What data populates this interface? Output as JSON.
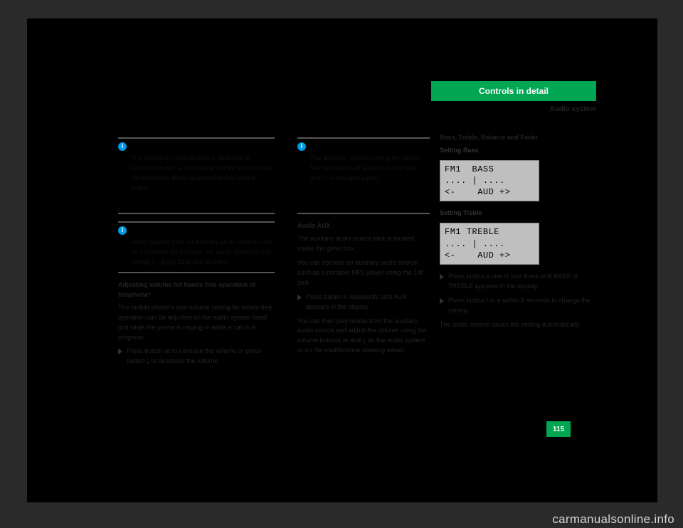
{
  "header": {
    "tab": "Controls in detail",
    "sub": "Audio system"
  },
  "col1": {
    "info1_body": "The telephone mute feature is available in conjunction with a compatible mobile phone using the Mercedes-Benz approved mobile phone cradle.",
    "info2_body": "When playing from an auxiliary audio source such as a portable MP3 player, the audio system's GAL setting (→ page 123) has no effect.",
    "heading": "Adjusting volume for hands-free operation of telephone*",
    "p1": "The mobile phone's own volume setting for hands-free operation can be adjusted on the audio system head unit while the phone is ringing or while a call is in progress.",
    "step1": "Press button æ to increase the volume or press button ç to decrease the volume."
  },
  "col2": {
    "info1_body": "The adjusted volume setting for hands-free operation will apply to future calls until it is changed again.",
    "heading": "Audio AUX",
    "p1": "The auxiliary audio source jack is located inside the glove box.",
    "p2": "You can connect an auxiliary audio source such as a portable MP3 player using the 1/8\" jack.",
    "step1": "Press button k repeatedly until AUX appears in the display.",
    "p3": "You can then play media from the auxiliary audio source and adjust the volume using the volume buttons æ and ç on the audio system or on the multifunction steering wheel."
  },
  "col3": {
    "heading": "Bass, Treble, Balance and Fader",
    "sub_bass": "Setting Bass",
    "lcd_bass_l1": "FM1  BASS",
    "lcd_bass_l2": ".... | ....",
    "lcd_bass_l3": "<-    AUD +>",
    "sub_treble": "Setting Treble",
    "lcd_treble_l1": "FM1 TREBLE",
    "lcd_treble_l2": ".... | ....",
    "lcd_treble_l3": "<-    AUD +>",
    "step1": "Press button d one or two times until BASS or TREBLE appears in the display.",
    "step2": "Press button f or e within 8 seconds to change the setting.",
    "foot": "The audio system saves the setting automatically."
  },
  "pagenum": "115",
  "watermark": "carmanualsonline.info",
  "styles": {
    "accent": "#00a651",
    "info_blue": "#0099e5",
    "lcd_bg": "#bfbfbf",
    "page_bg": "#000000",
    "body_bg": "#2a2a2a"
  }
}
